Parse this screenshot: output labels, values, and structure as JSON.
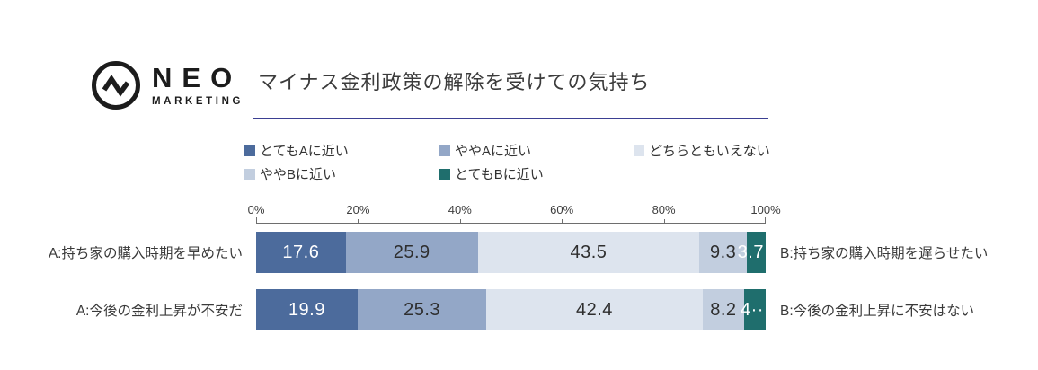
{
  "logo": {
    "name": "NEO",
    "sub": "MARKETING",
    "icon": "pulse-circle-icon"
  },
  "title": "マイナス金利政策の解除を受けての気持ち",
  "accent_underline_color": "#3b3f92",
  "legend": [
    {
      "label": "とてもAに近い",
      "color": "#4c6b9c"
    },
    {
      "label": "ややAに近い",
      "color": "#93a7c7"
    },
    {
      "label": "どちらともいえない",
      "color": "#dde4ee"
    },
    {
      "label": "ややBに近い",
      "color": "#c2cedf"
    },
    {
      "label": "とてもBに近い",
      "color": "#1f6e6d"
    }
  ],
  "chart_data": {
    "type": "bar",
    "orientation": "horizontal",
    "stacked": true,
    "title": "マイナス金利政策の解除を受けての気持ち",
    "xlim": [
      0,
      100
    ],
    "x_ticks": [
      "0%",
      "20%",
      "40%",
      "60%",
      "80%",
      "100%"
    ],
    "grid": false,
    "legend_position": "top",
    "series_names": [
      "とてもAに近い",
      "ややAに近い",
      "どちらともいえない",
      "ややBに近い",
      "とてもBに近い"
    ],
    "series_colors": [
      "#4c6b9c",
      "#93a7c7",
      "#dde4ee",
      "#c2cedf",
      "#1f6e6d"
    ],
    "value_text_colors": [
      "#ffffff",
      "#2e2e2e",
      "#2e2e2e",
      "#2e2e2e",
      "#ffffff"
    ],
    "rows": [
      {
        "label_a": "A:持ち家の購入時期を早めたい",
        "label_b": "B:持ち家の購入時期を遅らせたい",
        "values": [
          17.6,
          25.9,
          43.5,
          9.3,
          3.7
        ],
        "display": [
          "17.6",
          "25.9",
          "43.5",
          "9.3",
          "3.7"
        ]
      },
      {
        "label_a": "A:今後の金利上昇が不安だ",
        "label_b": "B:今後の金利上昇に不安はない",
        "values": [
          19.9,
          25.3,
          42.4,
          8.2,
          4.2
        ],
        "display": [
          "19.9",
          "25.3",
          "42.4",
          "8.2",
          "4··"
        ]
      }
    ]
  }
}
